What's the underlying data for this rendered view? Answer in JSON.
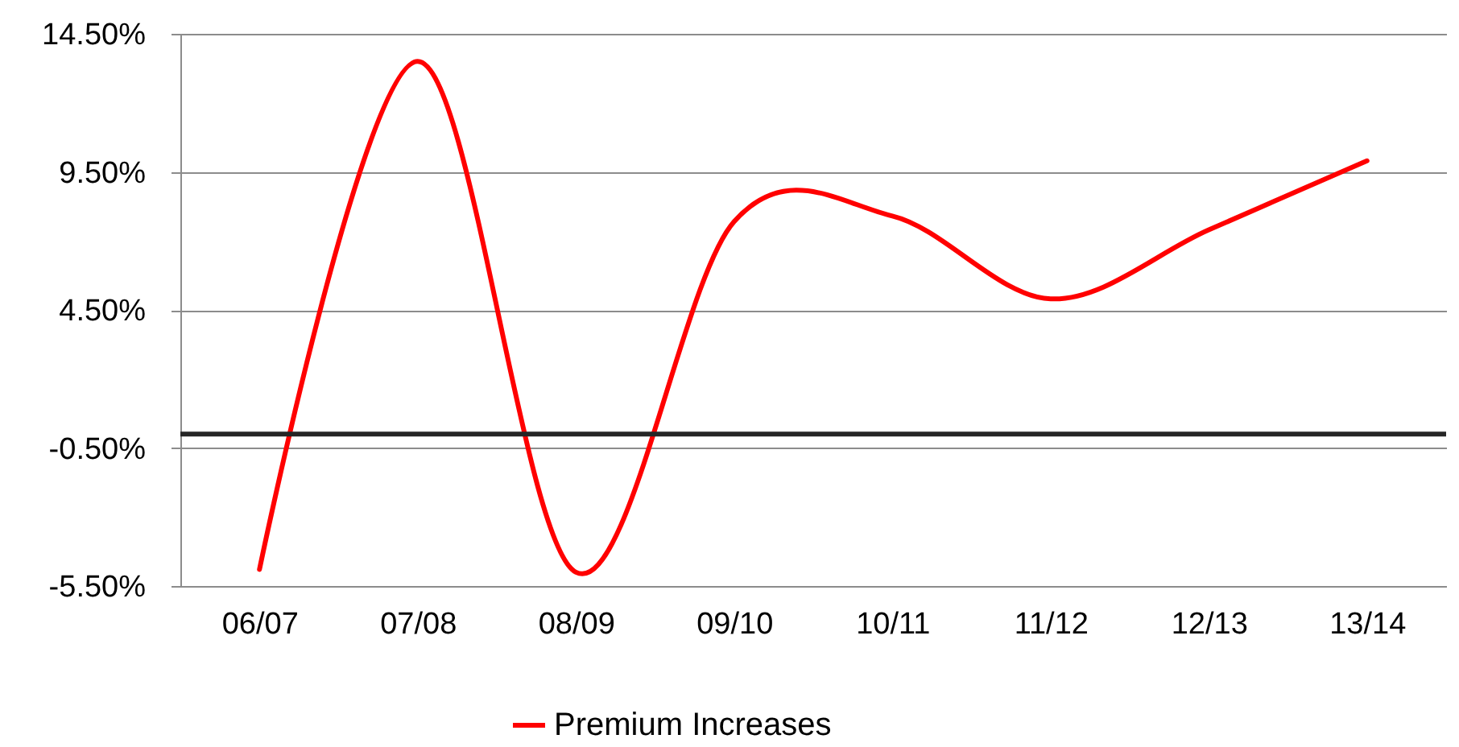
{
  "chart_data": {
    "type": "line",
    "categories": [
      "06/07",
      "07/08",
      "08/09",
      "09/10",
      "10/11",
      "11/12",
      "12/13",
      "13/14"
    ],
    "series": [
      {
        "name": "Premium Increases",
        "color": "#ff0000",
        "values": [
          -4.9,
          13.5,
          -5.0,
          7.7,
          7.9,
          4.9,
          7.4,
          9.9
        ]
      }
    ],
    "ylim": [
      -5.5,
      14.5
    ],
    "yticks": [
      {
        "value": -5.5,
        "label": "-5.50%"
      },
      {
        "value": -0.5,
        "label": "-0.50%"
      },
      {
        "value": 4.5,
        "label": "4.50%"
      },
      {
        "value": 9.5,
        "label": "9.50%"
      },
      {
        "value": 14.5,
        "label": "14.50%"
      }
    ],
    "ref_lines": [
      {
        "axis": "y",
        "value": 0,
        "color": "#262626"
      }
    ],
    "grid": "y",
    "legend": "bottom",
    "marker": "none",
    "line_style": "solid"
  }
}
